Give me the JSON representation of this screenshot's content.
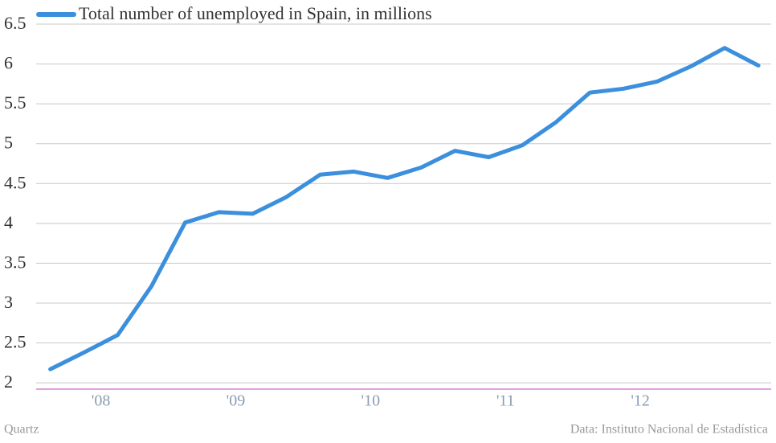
{
  "chart_data": {
    "type": "line",
    "legend": "Total number of unemployed in Spain, in millions",
    "source": "Data: Instituto Nacional de Estadística",
    "credit": "Quartz",
    "x": [
      2008.125,
      2008.375,
      2008.625,
      2008.875,
      2009.125,
      2009.375,
      2009.625,
      2009.875,
      2010.125,
      2010.375,
      2010.625,
      2010.875,
      2011.125,
      2011.375,
      2011.625,
      2011.875,
      2012.125,
      2012.375,
      2012.625,
      2012.875,
      2013.125,
      2013.375
    ],
    "series": [
      {
        "name": "Total number of unemployed in Spain, in millions",
        "color": "#3b8fdd",
        "values": [
          2.17,
          2.38,
          2.6,
          3.21,
          4.01,
          4.14,
          4.12,
          4.33,
          4.61,
          4.65,
          4.57,
          4.7,
          4.91,
          4.83,
          4.98,
          5.27,
          5.64,
          5.69,
          5.78,
          5.97,
          6.2,
          5.98
        ]
      }
    ],
    "xlim": [
      2008.02,
      2013.47
    ],
    "xticks": [
      {
        "value": 2008.5,
        "label": "'08"
      },
      {
        "value": 2009.5,
        "label": "'09"
      },
      {
        "value": 2010.5,
        "label": "'10"
      },
      {
        "value": 2011.5,
        "label": "'11"
      },
      {
        "value": 2012.5,
        "label": "'12"
      }
    ],
    "ylim": [
      1.92,
      6.5
    ],
    "yticks": [
      2,
      2.5,
      3,
      3.5,
      4,
      4.5,
      5,
      5.5,
      6,
      6.5
    ],
    "grid": true
  }
}
